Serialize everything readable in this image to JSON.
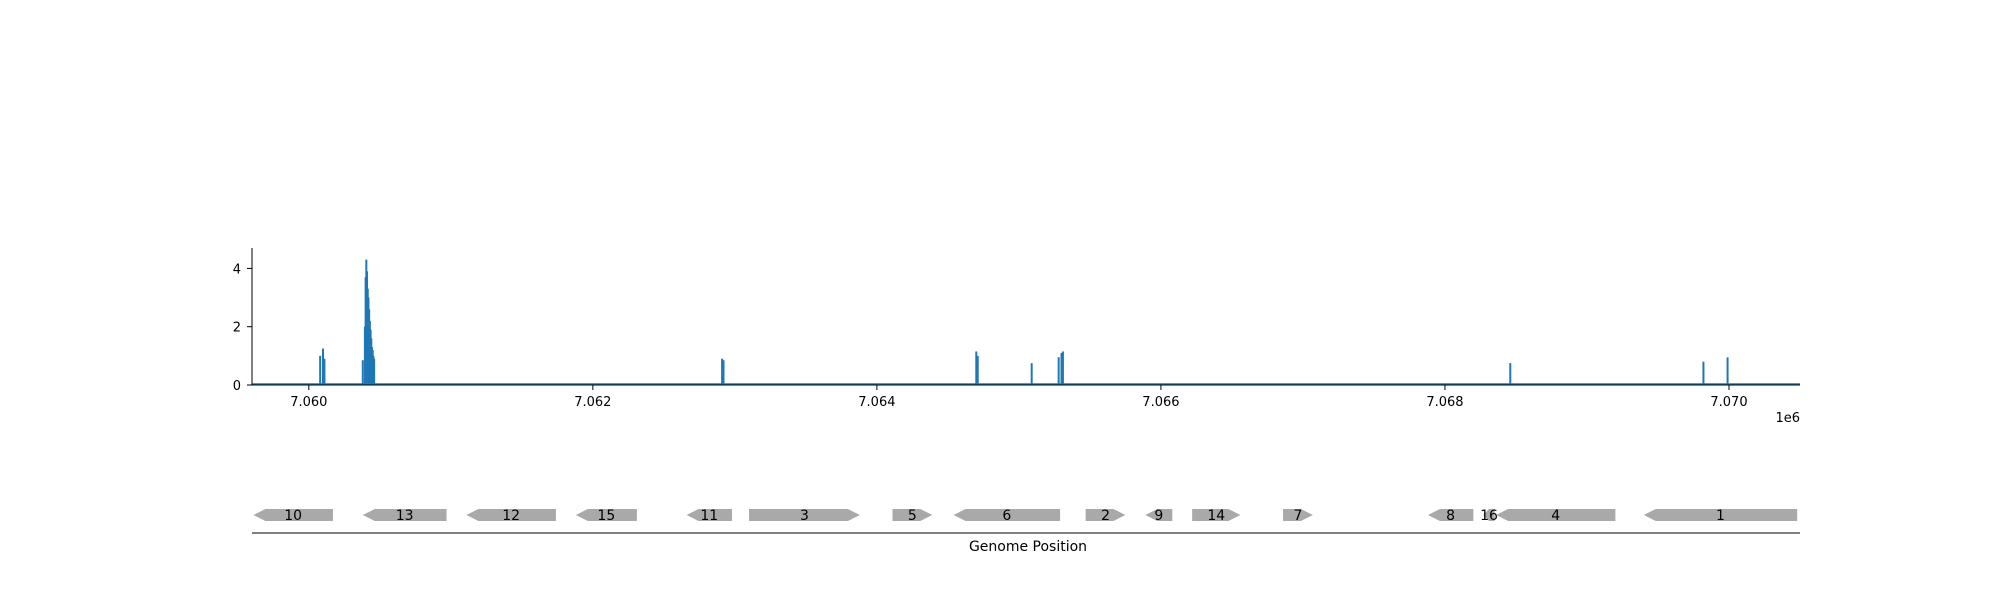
{
  "chart_data": [
    {
      "type": "line",
      "title": "",
      "xlabel": "",
      "ylabel": "",
      "x_offset_label": "1e6",
      "xlim": [
        7059600,
        7070500
      ],
      "ylim": [
        0,
        4.7
      ],
      "x_ticks": [
        7060000,
        7062000,
        7064000,
        7066000,
        7068000,
        7070000
      ],
      "x_tick_labels": [
        "7.060",
        "7.062",
        "7.064",
        "7.066",
        "7.068",
        "7.070"
      ],
      "y_ticks": [
        0,
        2,
        4
      ],
      "y_tick_labels": [
        "0",
        "2",
        "4"
      ],
      "grid": false,
      "legend": "none",
      "color": "#1f77b4",
      "baseline": 0,
      "series": [
        {
          "peaks": [
            {
              "x": 7060080,
              "y": 1.0
            },
            {
              "x": 7060100,
              "y": 1.25
            },
            {
              "x": 7060110,
              "y": 0.9
            },
            {
              "x": 7060380,
              "y": 0.85
            },
            {
              "x": 7060395,
              "y": 2.0
            },
            {
              "x": 7060400,
              "y": 3.7
            },
            {
              "x": 7060405,
              "y": 4.3
            },
            {
              "x": 7060410,
              "y": 3.9
            },
            {
              "x": 7060415,
              "y": 3.3
            },
            {
              "x": 7060420,
              "y": 3.0
            },
            {
              "x": 7060425,
              "y": 2.6
            },
            {
              "x": 7060430,
              "y": 2.2
            },
            {
              "x": 7060435,
              "y": 1.9
            },
            {
              "x": 7060440,
              "y": 1.6
            },
            {
              "x": 7060445,
              "y": 1.3
            },
            {
              "x": 7060450,
              "y": 1.2
            },
            {
              "x": 7060455,
              "y": 1.0
            },
            {
              "x": 7060460,
              "y": 0.9
            },
            {
              "x": 7062910,
              "y": 0.9
            },
            {
              "x": 7062920,
              "y": 0.85
            },
            {
              "x": 7064700,
              "y": 1.15
            },
            {
              "x": 7064710,
              "y": 1.0
            },
            {
              "x": 7065090,
              "y": 0.75
            },
            {
              "x": 7065280,
              "y": 0.95
            },
            {
              "x": 7065300,
              "y": 1.1
            },
            {
              "x": 7065310,
              "y": 1.15
            },
            {
              "x": 7068460,
              "y": 0.75
            },
            {
              "x": 7069820,
              "y": 0.8
            },
            {
              "x": 7069990,
              "y": 0.95
            }
          ]
        }
      ]
    },
    {
      "type": "gene_track",
      "xlabel": "Genome Position",
      "xlim": [
        7059600,
        7070500
      ],
      "fill_color": "#a9a9a9",
      "genes": [
        {
          "label": "10",
          "start": 7059610,
          "end": 7060170,
          "strand": "-"
        },
        {
          "label": "13",
          "start": 7060380,
          "end": 7060970,
          "strand": "-"
        },
        {
          "label": "12",
          "start": 7061110,
          "end": 7061740,
          "strand": "-"
        },
        {
          "label": "15",
          "start": 7061880,
          "end": 7062310,
          "strand": "-"
        },
        {
          "label": "11",
          "start": 7062660,
          "end": 7062980,
          "strand": "-"
        },
        {
          "label": "3",
          "start": 7063100,
          "end": 7063880,
          "strand": "+"
        },
        {
          "label": "5",
          "start": 7064110,
          "end": 7064390,
          "strand": "+"
        },
        {
          "label": "6",
          "start": 7064540,
          "end": 7065290,
          "strand": "-"
        },
        {
          "label": "2",
          "start": 7065470,
          "end": 7065750,
          "strand": "+"
        },
        {
          "label": "9",
          "start": 7065890,
          "end": 7066080,
          "strand": "-"
        },
        {
          "label": "14",
          "start": 7066220,
          "end": 7066560,
          "strand": "+"
        },
        {
          "label": "7",
          "start": 7066860,
          "end": 7067070,
          "strand": "+"
        },
        {
          "label": "8",
          "start": 7067880,
          "end": 7068200,
          "strand": "-"
        },
        {
          "label": "16",
          "start": 7068270,
          "end": 7068350,
          "strand": "-"
        },
        {
          "label": "4",
          "start": 7068360,
          "end": 7069200,
          "strand": "-"
        },
        {
          "label": "1",
          "start": 7069400,
          "end": 7070480,
          "strand": "-"
        }
      ]
    }
  ]
}
